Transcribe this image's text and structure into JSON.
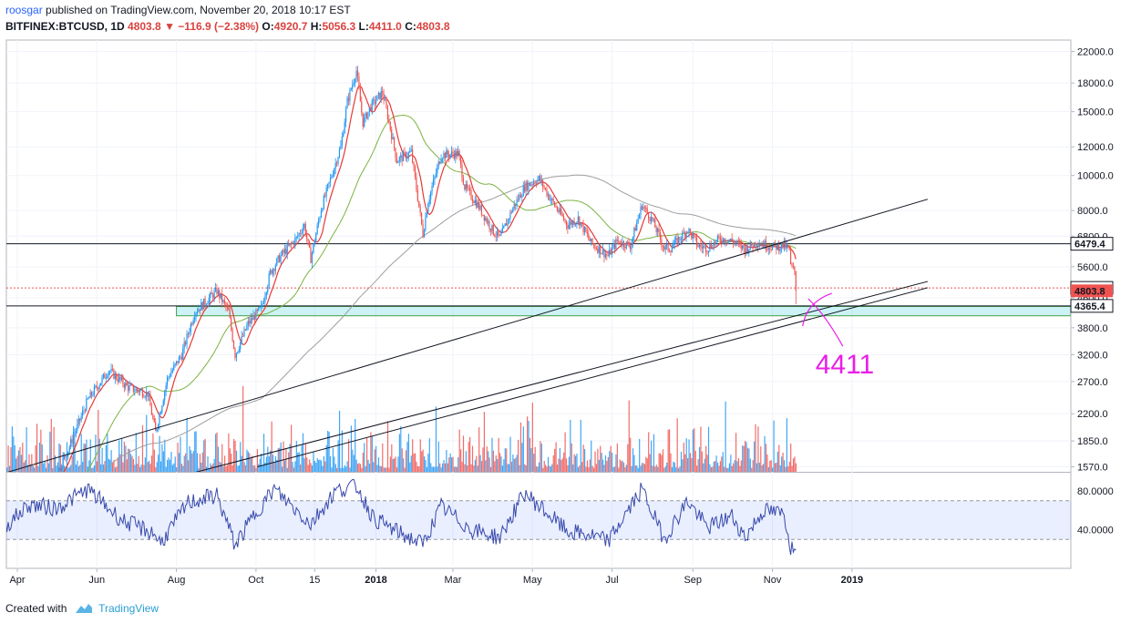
{
  "header": {
    "author": "roosgar",
    "published_text": "published on TradingView.com, November 20, 2018 10:17 EST",
    "symbol": "BITFINEX:BTCUSD, 1D",
    "last": "4803.8",
    "down_arrow": "▼",
    "change": "−116.9 (−2.38%)",
    "o_label": "O:",
    "o_value": "4920.7",
    "h_label": "H:",
    "h_value": "5056.3",
    "l_label": "L:",
    "l_value": "4411.0",
    "c_label": "C:",
    "c_value": "4803.8"
  },
  "footer": {
    "created_with": "Created with",
    "brand": "TradingView"
  },
  "colors": {
    "up": "#2196f3",
    "down": "#ef5350",
    "ma_fast": "#e53935",
    "ma_mid": "#7cb342",
    "ma_slow": "#9e9e9e",
    "rsi": "#3949ab",
    "zone": "#00bcd4",
    "annotation": "#e91ee6"
  },
  "chart_data": {
    "type": "line",
    "title": "",
    "price_axis": {
      "scale": "log",
      "ticks": [
        1570.0,
        1850.0,
        2200.0,
        2700.0,
        3200.0,
        3800.0,
        4600.0,
        5600.0,
        6800.0,
        8000.0,
        10000.0,
        12000.0,
        15000.0,
        18000.0,
        22000.0
      ],
      "tick_labels": [
        "1570.0",
        "1850.0",
        "2200.0",
        "2700.0",
        "3200.0",
        "3800.0",
        "4600.0",
        "5600.0",
        "6800.0",
        "8000.0",
        "10000.0",
        "12000.0",
        "15000.0",
        "18000.0",
        "22000.0"
      ]
    },
    "time_axis": {
      "labels": [
        "Apr",
        "Jun",
        "Aug",
        "Oct",
        "15",
        "2018",
        "Mar",
        "May",
        "Jul",
        "Sep",
        "Nov",
        "2019"
      ],
      "label_dates": [
        "2017-04-01",
        "2017-06-01",
        "2017-08-01",
        "2017-10-01",
        "2017-11-15",
        "2018-01-01",
        "2018-03-01",
        "2018-05-01",
        "2018-07-01",
        "2018-09-01",
        "2018-11-01",
        "2019-01-01"
      ]
    },
    "price_path": [
      [
        "2017-03-20",
        1050
      ],
      [
        "2017-04-01",
        1080
      ],
      [
        "2017-04-20",
        1230
      ],
      [
        "2017-05-10",
        1750
      ],
      [
        "2017-05-25",
        2400
      ],
      [
        "2017-06-10",
        2900
      ],
      [
        "2017-06-25",
        2600
      ],
      [
        "2017-07-10",
        2500
      ],
      [
        "2017-07-16",
        1950
      ],
      [
        "2017-07-25",
        2750
      ],
      [
        "2017-08-05",
        3200
      ],
      [
        "2017-08-15",
        4200
      ],
      [
        "2017-09-01",
        4800
      ],
      [
        "2017-09-10",
        4200
      ],
      [
        "2017-09-15",
        3200
      ],
      [
        "2017-09-25",
        3900
      ],
      [
        "2017-10-05",
        4300
      ],
      [
        "2017-10-12",
        5400
      ],
      [
        "2017-10-20",
        6000
      ],
      [
        "2017-11-01",
        6700
      ],
      [
        "2017-11-07",
        7300
      ],
      [
        "2017-11-12",
        5900
      ],
      [
        "2017-11-20",
        8100
      ],
      [
        "2017-11-28",
        10000
      ],
      [
        "2017-12-05",
        12000
      ],
      [
        "2017-12-10",
        16000
      ],
      [
        "2017-12-17",
        19500
      ],
      [
        "2017-12-22",
        14000
      ],
      [
        "2017-12-28",
        15500
      ],
      [
        "2018-01-06",
        17000
      ],
      [
        "2018-01-12",
        13500
      ],
      [
        "2018-01-17",
        11000
      ],
      [
        "2018-01-28",
        11600
      ],
      [
        "2018-02-06",
        6900
      ],
      [
        "2018-02-10",
        8500
      ],
      [
        "2018-02-20",
        11400
      ],
      [
        "2018-03-05",
        11500
      ],
      [
        "2018-03-10",
        9300
      ],
      [
        "2018-03-20",
        8300
      ],
      [
        "2018-04-01",
        7000
      ],
      [
        "2018-04-06",
        6700
      ],
      [
        "2018-04-15",
        8000
      ],
      [
        "2018-04-25",
        9300
      ],
      [
        "2018-05-06",
        9800
      ],
      [
        "2018-05-15",
        8600
      ],
      [
        "2018-05-28",
        7300
      ],
      [
        "2018-06-05",
        7600
      ],
      [
        "2018-06-15",
        6500
      ],
      [
        "2018-06-28",
        6000
      ],
      [
        "2018-07-05",
        6600
      ],
      [
        "2018-07-15",
        6400
      ],
      [
        "2018-07-24",
        8300
      ],
      [
        "2018-08-01",
        7500
      ],
      [
        "2018-08-10",
        6300
      ],
      [
        "2018-08-15",
        6300
      ],
      [
        "2018-08-28",
        7100
      ],
      [
        "2018-09-05",
        6400
      ],
      [
        "2018-09-12",
        6300
      ],
      [
        "2018-09-22",
        6700
      ],
      [
        "2018-10-01",
        6600
      ],
      [
        "2018-10-11",
        6250
      ],
      [
        "2018-10-20",
        6550
      ],
      [
        "2018-11-01",
        6350
      ],
      [
        "2018-11-10",
        6400
      ],
      [
        "2018-11-14",
        6200
      ],
      [
        "2018-11-15",
        5600
      ],
      [
        "2018-11-19",
        5400
      ],
      [
        "2018-11-20",
        4803.8
      ]
    ],
    "price_levels": [
      {
        "label": "6479.4",
        "value": 6479.4,
        "style": "solid"
      },
      {
        "label": "4893.8",
        "value": 4893.8,
        "style": "dotted"
      },
      {
        "label": "4365.4",
        "value": 4365.4,
        "style": "solid"
      }
    ],
    "current_price": {
      "label": "4803.8",
      "value": 4803.8
    },
    "support_zone": {
      "from_date": "2017-08-01",
      "to_date": "2019-03-01",
      "low": 4100,
      "high": 4350
    },
    "trendlines": [
      {
        "from": [
          "2017-03-20",
          1500
        ],
        "to": [
          "2019-02-28",
          8600
        ]
      },
      {
        "from": [
          "2017-03-20",
          1100
        ],
        "to": [
          "2019-02-28",
          5100
        ]
      },
      {
        "from": [
          "2017-10-02",
          1570
        ],
        "to": [
          "2019-02-28",
          4900
        ]
      }
    ],
    "annotation": {
      "text": "4411",
      "value": 4411
    },
    "rsi": {
      "ticks": [
        40,
        80
      ],
      "tick_labels": [
        "40.0000",
        "80.0000"
      ],
      "band": [
        30,
        70
      ],
      "values": [
        [
          "2017-03-20",
          40
        ],
        [
          "2017-04-10",
          66
        ],
        [
          "2017-05-01",
          62
        ],
        [
          "2017-05-25",
          82
        ],
        [
          "2017-06-20",
          50
        ],
        [
          "2017-07-15",
          36
        ],
        [
          "2017-07-20",
          26
        ],
        [
          "2017-08-10",
          68
        ],
        [
          "2017-09-01",
          76
        ],
        [
          "2017-09-15",
          24
        ],
        [
          "2017-10-01",
          58
        ],
        [
          "2017-10-15",
          82
        ],
        [
          "2017-11-12",
          46
        ],
        [
          "2017-12-01",
          80
        ],
        [
          "2017-12-17",
          86
        ],
        [
          "2017-12-30",
          52
        ],
        [
          "2018-01-17",
          38
        ],
        [
          "2018-02-06",
          25
        ],
        [
          "2018-02-20",
          64
        ],
        [
          "2018-03-15",
          40
        ],
        [
          "2018-04-06",
          32
        ],
        [
          "2018-04-25",
          78
        ],
        [
          "2018-05-28",
          38
        ],
        [
          "2018-06-15",
          34
        ],
        [
          "2018-06-28",
          28
        ],
        [
          "2018-07-24",
          82
        ],
        [
          "2018-08-10",
          30
        ],
        [
          "2018-08-28",
          70
        ],
        [
          "2018-09-12",
          42
        ],
        [
          "2018-10-01",
          54
        ],
        [
          "2018-10-11",
          32
        ],
        [
          "2018-10-25",
          60
        ],
        [
          "2018-11-10",
          56
        ],
        [
          "2018-11-15",
          22
        ],
        [
          "2018-11-20",
          18
        ]
      ]
    }
  }
}
